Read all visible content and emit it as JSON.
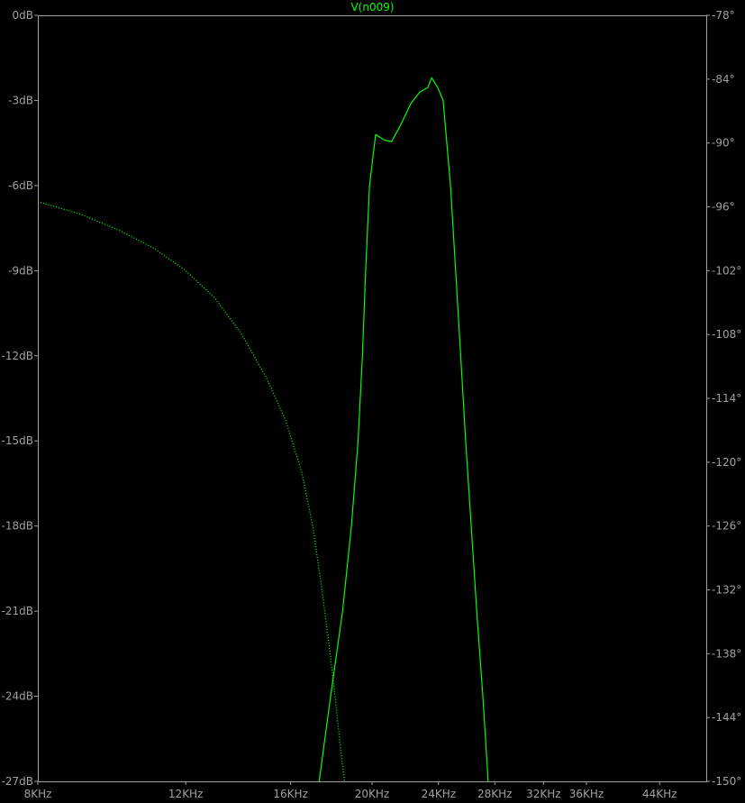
{
  "chart_data": {
    "type": "line",
    "title": "V(n009)",
    "title_color": "#00ff00",
    "background": "#000000",
    "axis_color": "#a0a0a0",
    "grid": false,
    "x_axis": {
      "scale": "log",
      "range": [
        8000,
        50000
      ],
      "unit": "Hz",
      "ticks": [
        {
          "value": 8000,
          "label": "8KHz"
        },
        {
          "value": 12000,
          "label": "12KHz"
        },
        {
          "value": 16000,
          "label": "16KHz"
        },
        {
          "value": 20000,
          "label": "20KHz"
        },
        {
          "value": 24000,
          "label": "24KHz"
        },
        {
          "value": 28000,
          "label": "28KHz"
        },
        {
          "value": 32000,
          "label": "32KHz"
        },
        {
          "value": 36000,
          "label": "36KHz"
        },
        {
          "value": 44000,
          "label": "44KHz"
        }
      ]
    },
    "y_left": {
      "range": [
        -27,
        0
      ],
      "unit": "dB",
      "ticks": [
        {
          "value": 0,
          "label": "0dB"
        },
        {
          "value": -3,
          "label": "-3dB"
        },
        {
          "value": -6,
          "label": "-6dB"
        },
        {
          "value": -9,
          "label": "-9dB"
        },
        {
          "value": -12,
          "label": "-12dB"
        },
        {
          "value": -15,
          "label": "-15dB"
        },
        {
          "value": -18,
          "label": "-18dB"
        },
        {
          "value": -21,
          "label": "-21dB"
        },
        {
          "value": -24,
          "label": "-24dB"
        },
        {
          "value": -27,
          "label": "-27dB"
        }
      ]
    },
    "y_right": {
      "range": [
        -150,
        -78
      ],
      "unit": "deg",
      "ticks": [
        {
          "value": -78,
          "label": "-78°"
        },
        {
          "value": -84,
          "label": "-84°"
        },
        {
          "value": -90,
          "label": "-90°"
        },
        {
          "value": -96,
          "label": "-96°"
        },
        {
          "value": -102,
          "label": "-102°"
        },
        {
          "value": -108,
          "label": "-108°"
        },
        {
          "value": -114,
          "label": "-114°"
        },
        {
          "value": -120,
          "label": "-120°"
        },
        {
          "value": -126,
          "label": "-126°"
        },
        {
          "value": -132,
          "label": "-132°"
        },
        {
          "value": -138,
          "label": "-138°"
        },
        {
          "value": -144,
          "label": "-144°"
        },
        {
          "value": -150,
          "label": "-150°"
        }
      ]
    },
    "series": [
      {
        "quantity": "magnitude",
        "axis": "left",
        "style": "solid",
        "color": "#00ff00",
        "points": [
          [
            17300,
            -27.0
          ],
          [
            17850,
            -24.0
          ],
          [
            18450,
            -21.0
          ],
          [
            18900,
            -18.0
          ],
          [
            19250,
            -15.0
          ],
          [
            19480,
            -12.0
          ],
          [
            19650,
            -9.0
          ],
          [
            19860,
            -6.0
          ],
          [
            20200,
            -4.2
          ],
          [
            20700,
            -4.4
          ],
          [
            21100,
            -4.45
          ],
          [
            21600,
            -3.9
          ],
          [
            22250,
            -3.1
          ],
          [
            22800,
            -2.7
          ],
          [
            23300,
            -2.55
          ],
          [
            23550,
            -2.2
          ],
          [
            23950,
            -2.55
          ],
          [
            24300,
            -3.0
          ],
          [
            24800,
            -6.0
          ],
          [
            25150,
            -9.0
          ],
          [
            25500,
            -12.0
          ],
          [
            25850,
            -15.0
          ],
          [
            26250,
            -18.0
          ],
          [
            26650,
            -21.0
          ],
          [
            27100,
            -24.0
          ],
          [
            27500,
            -27.0
          ]
        ]
      },
      {
        "quantity": "phase",
        "axis": "right",
        "style": "dotted",
        "color": "#00ff00",
        "points": [
          [
            8000,
            -95.5
          ],
          [
            9000,
            -96.7
          ],
          [
            10000,
            -98.2
          ],
          [
            11000,
            -99.9
          ],
          [
            12000,
            -102.0
          ],
          [
            13000,
            -104.6
          ],
          [
            14000,
            -108.0
          ],
          [
            15000,
            -112.2
          ],
          [
            15800,
            -116.2
          ],
          [
            16500,
            -121.0
          ],
          [
            17000,
            -126.0
          ],
          [
            17400,
            -131.5
          ],
          [
            17800,
            -137.5
          ],
          [
            18100,
            -142.5
          ],
          [
            18350,
            -147.0
          ],
          [
            18550,
            -150.0
          ]
        ]
      }
    ]
  }
}
